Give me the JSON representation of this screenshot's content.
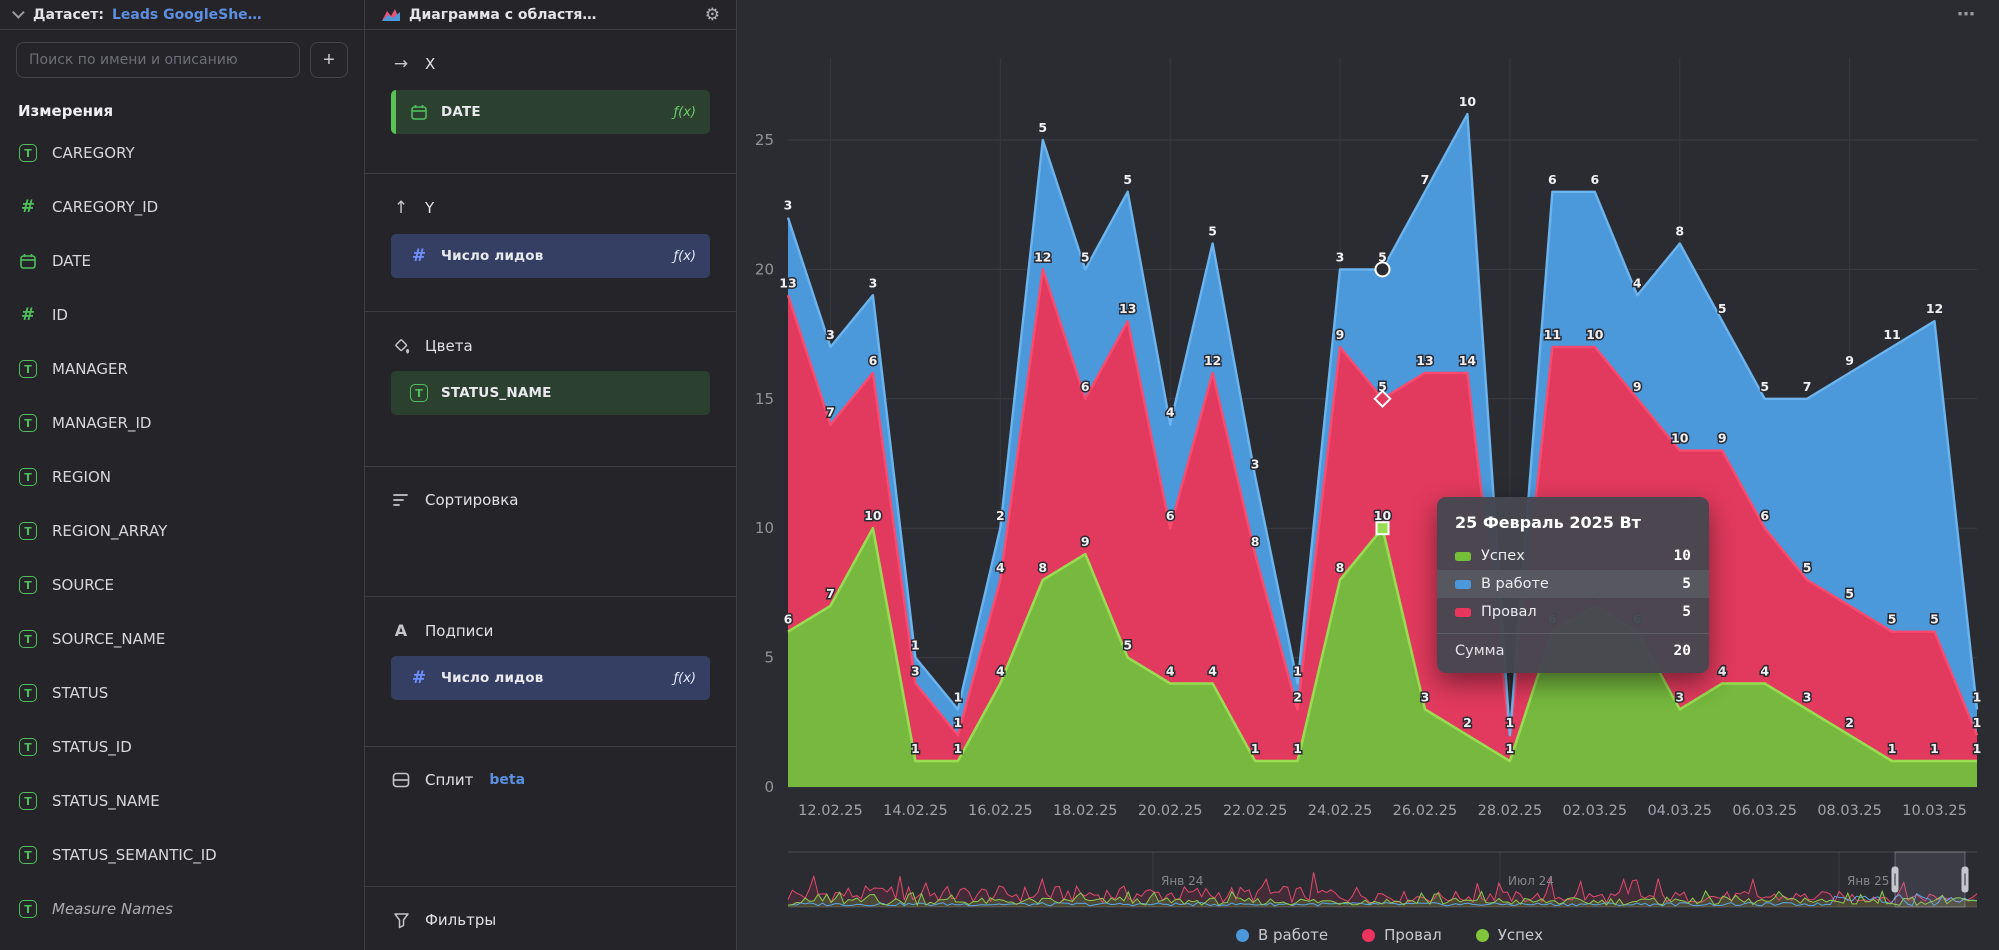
{
  "topbar": {
    "dataset_label": "Датасет:",
    "dataset_link": "Leads GoogleShe…",
    "chart_type_title": "Диаграмма с областя…",
    "menu_dots": "⋯"
  },
  "sidebar": {
    "search_placeholder": "Поиск по имени и описанию",
    "add_button": "+",
    "section_title": "Измерения",
    "fields": [
      {
        "name": "CAREGORY",
        "icon": "text"
      },
      {
        "name": "CAREGORY_ID",
        "icon": "number"
      },
      {
        "name": "DATE",
        "icon": "calendar"
      },
      {
        "name": "ID",
        "icon": "number"
      },
      {
        "name": "MANAGER",
        "icon": "text"
      },
      {
        "name": "MANAGER_ID",
        "icon": "text"
      },
      {
        "name": "REGION",
        "icon": "text"
      },
      {
        "name": "REGION_ARRAY",
        "icon": "text"
      },
      {
        "name": "SOURCE",
        "icon": "text"
      },
      {
        "name": "SOURCE_NAME",
        "icon": "text"
      },
      {
        "name": "STATUS",
        "icon": "text"
      },
      {
        "name": "STATUS_ID",
        "icon": "text"
      },
      {
        "name": "STATUS_NAME",
        "icon": "text"
      },
      {
        "name": "STATUS_SEMANTIC_ID",
        "icon": "text"
      },
      {
        "name": "Measure Names",
        "icon": "text",
        "italic": true
      }
    ]
  },
  "config": {
    "sections": [
      {
        "id": "x",
        "label": "X",
        "icon": "arrow-right",
        "pills": [
          {
            "text": "DATE",
            "icon": "calendar",
            "color": "green",
            "accent": true,
            "fx": "ƒ(x)"
          }
        ]
      },
      {
        "id": "y",
        "label": "Y",
        "icon": "arrow-up",
        "pills": [
          {
            "text": "Число лидов",
            "icon": "number",
            "color": "blue",
            "fx": "ƒ(x)"
          }
        ]
      },
      {
        "id": "colors",
        "label": "Цвета",
        "icon": "paint",
        "pills": [
          {
            "text": "STATUS_NAME",
            "icon": "text",
            "color": "green"
          }
        ]
      },
      {
        "id": "sort",
        "label": "Сортировка",
        "icon": "sort",
        "pills": []
      },
      {
        "id": "labels",
        "label": "Подписи",
        "icon": "labels",
        "pills": [
          {
            "text": "Число лидов",
            "icon": "number",
            "color": "blue",
            "fx": "ƒ(x)"
          }
        ]
      },
      {
        "id": "split",
        "label": "Сплит",
        "icon": "split",
        "badge": "beta",
        "pills": []
      },
      {
        "id": "filters",
        "label": "Фильтры",
        "icon": "filter",
        "pills": []
      }
    ]
  },
  "chart_data": {
    "type": "area",
    "stacked": true,
    "title": "",
    "xlabel": "",
    "ylabel": "",
    "ylim": [
      0,
      25
    ],
    "yticks": [
      0,
      5,
      10,
      15,
      20,
      25
    ],
    "grid": true,
    "legend_position": "bottom",
    "x": [
      "11.02.25",
      "12.02.25",
      "13.02.25",
      "14.02.25",
      "15.02.25",
      "16.02.25",
      "17.02.25",
      "18.02.25",
      "19.02.25",
      "20.02.25",
      "21.02.25",
      "22.02.25",
      "23.02.25",
      "24.02.25",
      "25.02.25",
      "26.02.25",
      "27.02.25",
      "28.02.25",
      "01.03.25",
      "02.03.25",
      "03.03.25",
      "04.03.25",
      "05.03.25",
      "06.03.25",
      "07.03.25",
      "08.03.25",
      "09.03.25",
      "10.03.25",
      "11.03.25"
    ],
    "x_tick_labels": [
      "12.02.25",
      "14.02.25",
      "16.02.25",
      "18.02.25",
      "20.02.25",
      "22.02.25",
      "24.02.25",
      "26.02.25",
      "28.02.25",
      "02.03.25",
      "04.03.25",
      "06.03.25",
      "08.03.25",
      "10.03.25"
    ],
    "stack_order": [
      "Успех",
      "Провал",
      "В работе"
    ],
    "series": [
      {
        "name": "Успех",
        "color": "#76b93e",
        "line_color": "#98dd51",
        "values": [
          6,
          7,
          10,
          1,
          1,
          4,
          8,
          9,
          5,
          4,
          4,
          1,
          1,
          8,
          10,
          3,
          2,
          1,
          6,
          7,
          6,
          3,
          4,
          4,
          3,
          2,
          1,
          1,
          1
        ]
      },
      {
        "name": "Провал",
        "color": "#e23a5e",
        "line_color": "#fb4a6e",
        "values": [
          13,
          7,
          6,
          3,
          1,
          4,
          12,
          6,
          13,
          6,
          12,
          8,
          2,
          9,
          5,
          13,
          14,
          1,
          11,
          10,
          9,
          10,
          9,
          6,
          5,
          5,
          5,
          5,
          1
        ]
      },
      {
        "name": "В работе",
        "color": "#4b98da",
        "line_color": "#6cb4ee",
        "values": [
          3,
          3,
          3,
          1,
          1,
          2,
          5,
          5,
          5,
          4,
          5,
          3,
          1,
          3,
          5,
          7,
          10,
          0,
          6,
          6,
          4,
          8,
          5,
          5,
          7,
          9,
          11,
          12,
          1
        ]
      }
    ],
    "highlighted_point": {
      "date": "25.02.25",
      "index": 14
    }
  },
  "tooltip": {
    "title": "25 Февраль 2025 Вт",
    "rows": [
      {
        "name": "Успех",
        "value": "10",
        "color": "#76c039",
        "highlight": false
      },
      {
        "name": "В работе",
        "value": "5",
        "color": "#4b98da",
        "highlight": true
      },
      {
        "name": "Провал",
        "value": "5",
        "color": "#e8365f",
        "highlight": false
      }
    ],
    "total_label": "Сумма",
    "total_value": "20"
  },
  "navigator": {
    "range_labels": [
      "Янв 24",
      "Июл 24",
      "Янв 25"
    ]
  },
  "legend": [
    {
      "label": "В работе",
      "color": "#4b98da"
    },
    {
      "label": "Провал",
      "color": "#ef3361"
    },
    {
      "label": "Успех",
      "color": "#83c43d"
    }
  ]
}
